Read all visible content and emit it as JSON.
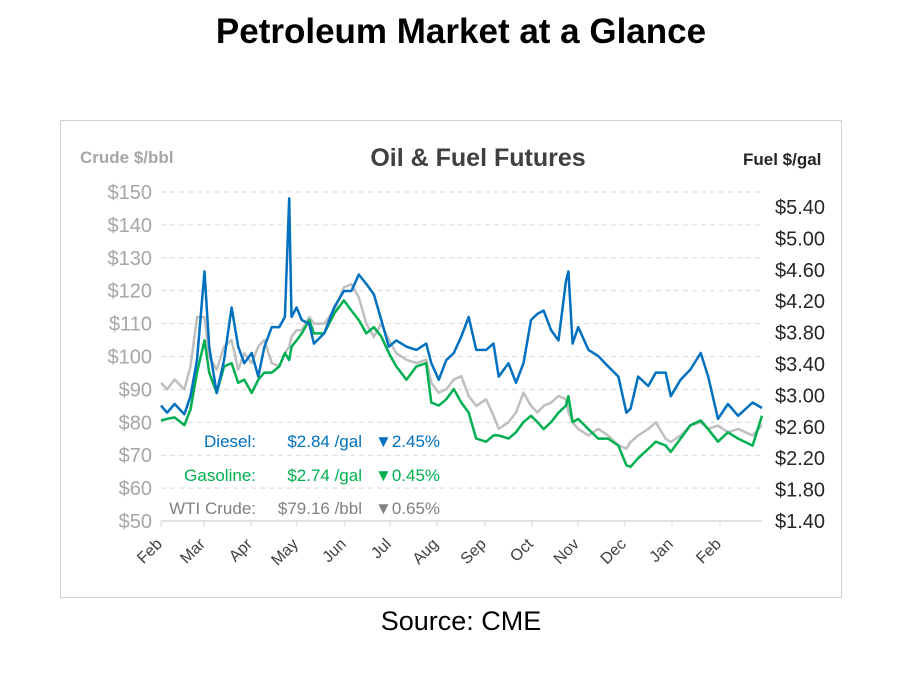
{
  "page": {
    "title": "Petroleum Market at a Glance",
    "source": "Source: CME"
  },
  "chart_data": {
    "type": "line",
    "title": "Oil & Fuel Futures",
    "left_axis_label": "Crude $/bbl",
    "right_axis_label": "Fuel $/gal",
    "left_ylim": [
      50,
      150
    ],
    "left_ticks": [
      "$150",
      "$140",
      "$130",
      "$120",
      "$110",
      "$100",
      "$90",
      "$80",
      "$70",
      "$60",
      "$50"
    ],
    "left_tick_values": [
      150,
      140,
      130,
      120,
      110,
      100,
      90,
      80,
      70,
      60,
      50
    ],
    "right_ylim": [
      1.4,
      5.4
    ],
    "right_ticks": [
      "$5.40",
      "$5.00",
      "$4.60",
      "$4.20",
      "$3.80",
      "$3.40",
      "$3.00",
      "$2.60",
      "$2.20",
      "$1.80",
      "$1.40"
    ],
    "right_tick_values": [
      5.4,
      5.0,
      4.6,
      4.2,
      3.8,
      3.4,
      3.0,
      2.6,
      2.2,
      1.8,
      1.4
    ],
    "x_unit": "months since start of first Feb",
    "x_categories": [
      "Feb",
      "Mar",
      "Apr",
      "May",
      "Jun",
      "Jul",
      "Aug",
      "Sep",
      "Oct",
      "Nov",
      "Dec",
      "Jan",
      "Feb"
    ],
    "x_range": [
      0,
      12.85
    ],
    "grid": "horizontal dashed",
    "x": [
      0,
      0.13,
      0.29,
      0.5,
      0.63,
      0.77,
      0.93,
      1.03,
      1.19,
      1.35,
      1.51,
      1.65,
      1.78,
      1.94,
      2.08,
      2.21,
      2.37,
      2.53,
      2.65,
      2.74,
      2.79,
      2.9,
      3.01,
      3.17,
      3.27,
      3.49,
      3.7,
      3.91,
      4.07,
      4.23,
      4.39,
      4.55,
      4.71,
      4.87,
      5.03,
      5.25,
      5.46,
      5.67,
      5.78,
      5.94,
      6.1,
      6.26,
      6.42,
      6.58,
      6.74,
      6.95,
      7.11,
      7.22,
      7.43,
      7.59,
      7.75,
      7.91,
      8.05,
      8.18,
      8.34,
      8.5,
      8.66,
      8.71,
      8.8,
      8.92,
      9.14,
      9.35,
      9.56,
      9.78,
      9.95,
      10.04,
      10.2,
      10.42,
      10.58,
      10.79,
      10.9,
      11.11,
      11.32,
      11.54,
      11.7,
      11.91,
      12.12,
      12.34,
      12.65,
      12.85
    ],
    "series": [
      {
        "name": "WTI Crude",
        "axis": "left",
        "color": "#bfbfbf",
        "values": [
          92,
          90,
          93,
          90,
          97,
          112,
          112,
          100,
          96,
          103,
          105,
          96,
          101,
          98,
          103,
          105,
          98,
          97,
          101,
          103,
          106,
          108,
          108,
          112,
          110,
          110,
          114,
          121,
          122,
          118,
          110,
          106,
          110,
          105,
          101,
          99,
          98,
          99,
          92,
          89,
          90,
          93,
          94,
          88,
          85,
          87,
          82,
          78,
          80,
          83,
          89,
          85,
          83,
          85,
          86,
          88,
          87,
          83,
          80,
          78,
          76,
          78,
          76,
          73,
          72,
          74,
          76,
          78,
          80,
          75,
          74,
          76,
          79,
          80,
          78,
          79,
          77,
          78,
          76,
          79.16
        ]
      },
      {
        "name": "Gasoline",
        "axis": "right",
        "color": "#00b050",
        "values": [
          2.68,
          2.7,
          2.72,
          2.62,
          2.82,
          3.29,
          3.7,
          3.29,
          3.03,
          3.37,
          3.41,
          3.16,
          3.2,
          3.03,
          3.2,
          3.29,
          3.29,
          3.37,
          3.54,
          3.45,
          3.62,
          3.7,
          3.79,
          3.96,
          3.79,
          3.79,
          4.04,
          4.21,
          4.08,
          3.96,
          3.79,
          3.87,
          3.75,
          3.54,
          3.37,
          3.2,
          3.37,
          3.41,
          2.91,
          2.87,
          2.95,
          3.08,
          2.91,
          2.78,
          2.45,
          2.41,
          2.49,
          2.49,
          2.45,
          2.53,
          2.66,
          2.74,
          2.66,
          2.57,
          2.66,
          2.78,
          2.87,
          2.99,
          2.66,
          2.7,
          2.57,
          2.45,
          2.45,
          2.36,
          2.11,
          2.09,
          2.2,
          2.32,
          2.41,
          2.36,
          2.28,
          2.45,
          2.62,
          2.68,
          2.57,
          2.41,
          2.53,
          2.45,
          2.36,
          2.74
        ]
      },
      {
        "name": "Diesel",
        "axis": "right",
        "color": "#0070c0",
        "values": [
          2.87,
          2.78,
          2.89,
          2.76,
          2.99,
          3.45,
          4.58,
          3.62,
          3.03,
          3.45,
          4.12,
          3.62,
          3.41,
          3.54,
          3.24,
          3.62,
          3.87,
          3.87,
          4.0,
          5.51,
          4.0,
          4.12,
          3.96,
          3.91,
          3.66,
          3.79,
          4.12,
          4.33,
          4.33,
          4.54,
          4.42,
          4.29,
          3.96,
          3.62,
          3.7,
          3.62,
          3.58,
          3.66,
          3.41,
          3.2,
          3.45,
          3.54,
          3.75,
          4.0,
          3.58,
          3.58,
          3.66,
          3.24,
          3.41,
          3.16,
          3.41,
          3.96,
          4.04,
          4.08,
          3.83,
          3.7,
          4.46,
          4.58,
          3.66,
          3.87,
          3.58,
          3.5,
          3.37,
          3.24,
          2.78,
          2.83,
          3.24,
          3.12,
          3.29,
          3.29,
          2.99,
          3.2,
          3.33,
          3.54,
          3.24,
          2.7,
          2.89,
          2.74,
          2.91,
          2.84
        ]
      }
    ],
    "legend": [
      {
        "label": "Diesel:",
        "price": "$2.84 /gal",
        "change": "▼2.45%",
        "color": "#0070c0"
      },
      {
        "label": "Gasoline:",
        "price": "$2.74 /gal",
        "change": "▼0.45%",
        "color": "#00b050"
      },
      {
        "label": "WTI Crude:",
        "price": "$79.16 /bbl",
        "change": "▼0.65%",
        "color": "#808080"
      }
    ]
  }
}
